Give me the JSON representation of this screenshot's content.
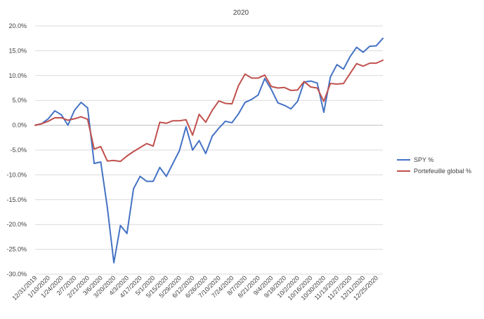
{
  "chart_data": {
    "type": "line",
    "title": "2020",
    "xlabel": "",
    "ylabel": "",
    "ylim": [
      -0.3,
      0.2
    ],
    "y_tick_step": 0.05,
    "y_format": "percent_1dp",
    "grid": true,
    "legend_placement": "right",
    "x_tick_labels": [
      "12/31/2019",
      "1/10/2020",
      "1/24/2020",
      "2/7/2020",
      "2/21/2020",
      "3/6/2020",
      "3/20/2020",
      "4/3/2020",
      "4/17/2020",
      "5/1/2020",
      "5/15/2020",
      "5/29/2020",
      "6/12/2020",
      "6/26/2020",
      "7/10/2020",
      "7/24/2020",
      "8/7/2020",
      "8/21/2020",
      "9/4/2020",
      "9/18/2020",
      "10/2/2020",
      "10/16/2020",
      "10/30/2020",
      "11/13/2020",
      "11/27/2020",
      "12/11/2020",
      "12/25/2020"
    ],
    "x": [
      "12/31/2019",
      "1/3/2020",
      "1/10/2020",
      "1/17/2020",
      "1/24/2020",
      "1/31/2020",
      "2/7/2020",
      "2/14/2020",
      "2/21/2020",
      "2/28/2020",
      "3/6/2020",
      "3/13/2020",
      "3/20/2020",
      "3/27/2020",
      "4/3/2020",
      "4/10/2020",
      "4/17/2020",
      "4/24/2020",
      "5/1/2020",
      "5/8/2020",
      "5/15/2020",
      "5/22/2020",
      "5/29/2020",
      "6/5/2020",
      "6/12/2020",
      "6/19/2020",
      "6/26/2020",
      "7/3/2020",
      "7/10/2020",
      "7/17/2020",
      "7/24/2020",
      "7/31/2020",
      "8/7/2020",
      "8/14/2020",
      "8/21/2020",
      "8/28/2020",
      "9/4/2020",
      "9/11/2020",
      "9/18/2020",
      "9/25/2020",
      "10/2/2020",
      "10/9/2020",
      "10/16/2020",
      "10/23/2020",
      "10/30/2020",
      "11/6/2020",
      "11/13/2020",
      "11/20/2020",
      "11/27/2020",
      "12/4/2020",
      "12/11/2020",
      "12/18/2020",
      "12/25/2020",
      "12/31/2020"
    ],
    "series": [
      {
        "name": "SPY %",
        "color": "#4472c4",
        "values": [
          0.0,
          0.003,
          0.013,
          0.029,
          0.021,
          0.0,
          0.03,
          0.046,
          0.035,
          -0.077,
          -0.074,
          -0.165,
          -0.277,
          -0.202,
          -0.218,
          -0.128,
          -0.103,
          -0.113,
          -0.113,
          -0.085,
          -0.103,
          -0.077,
          -0.051,
          -0.003,
          -0.05,
          -0.031,
          -0.057,
          -0.022,
          -0.006,
          0.008,
          0.005,
          0.023,
          0.046,
          0.052,
          0.061,
          0.094,
          0.072,
          0.045,
          0.04,
          0.033,
          0.048,
          0.087,
          0.089,
          0.085,
          0.026,
          0.097,
          0.122,
          0.113,
          0.138,
          0.157,
          0.147,
          0.159,
          0.16,
          0.175
        ]
      },
      {
        "name": "Portefeuille global %",
        "color": "#c0504d",
        "values": [
          0.0,
          0.003,
          0.008,
          0.015,
          0.015,
          0.01,
          0.013,
          0.017,
          0.012,
          -0.048,
          -0.043,
          -0.072,
          -0.071,
          -0.073,
          -0.062,
          -0.053,
          -0.045,
          -0.037,
          -0.042,
          0.006,
          0.004,
          0.009,
          0.009,
          0.011,
          -0.02,
          0.022,
          0.006,
          0.03,
          0.049,
          0.044,
          0.043,
          0.08,
          0.103,
          0.095,
          0.095,
          0.101,
          0.078,
          0.075,
          0.076,
          0.07,
          0.071,
          0.088,
          0.077,
          0.075,
          0.048,
          0.084,
          0.083,
          0.084,
          0.104,
          0.124,
          0.119,
          0.125,
          0.125,
          0.131
        ]
      }
    ]
  }
}
